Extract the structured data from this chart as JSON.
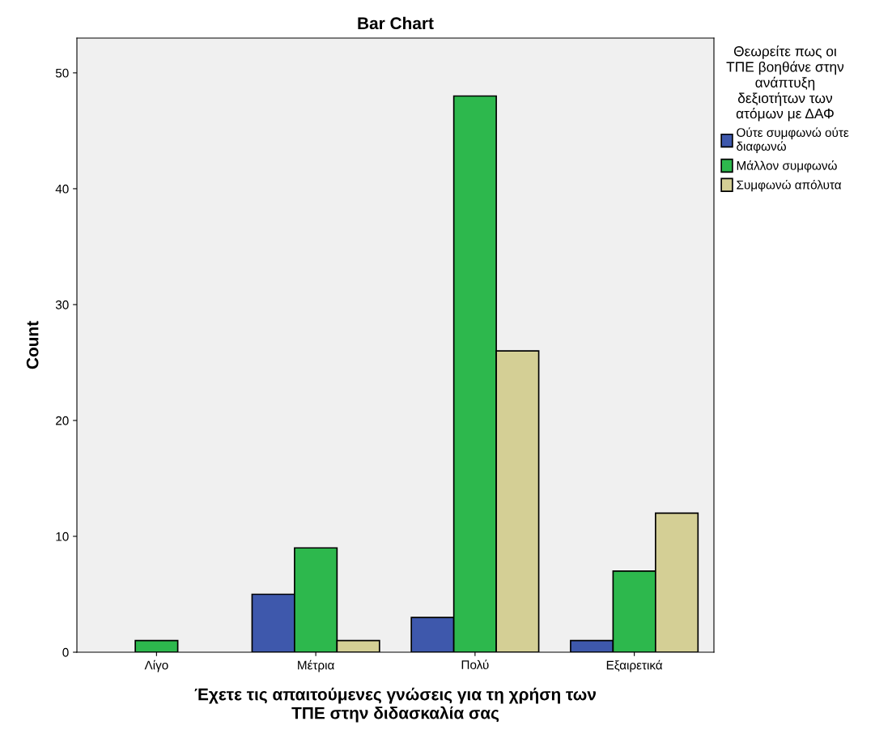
{
  "chart_data": {
    "type": "bar",
    "title": "Bar Chart",
    "xlabel": "Έχετε τις απαιτούμενες γνώσεις για τη χρήση των\nΤΠΕ στην διδασκαλία σας",
    "ylabel": "Count",
    "legend_title": "Θεωρείτε πως οι\nΤΠΕ βοηθάνε στην\nανάπτυξη\nδεξιοτήτων των\nατόμων με ΔΑΦ",
    "categories": [
      "Λίγο",
      "Μέτρια",
      "Πολύ",
      "Εξαιρετικά"
    ],
    "series": [
      {
        "name": "Ούτε συμφωνώ ούτε\nδιαφωνώ",
        "color": "#3e58ac",
        "values": [
          null,
          5,
          3,
          1
        ]
      },
      {
        "name": "Μάλλον συμφωνώ",
        "color": "#2db84d",
        "values": [
          1,
          9,
          48,
          7
        ]
      },
      {
        "name": "Συμφωνώ απόλυτα",
        "color": "#d4cf95",
        "values": [
          null,
          1,
          26,
          12
        ]
      }
    ],
    "ylim": [
      0,
      53
    ],
    "yticks": [
      0,
      10,
      20,
      30,
      40,
      50
    ],
    "grid": false,
    "legend": "right"
  }
}
